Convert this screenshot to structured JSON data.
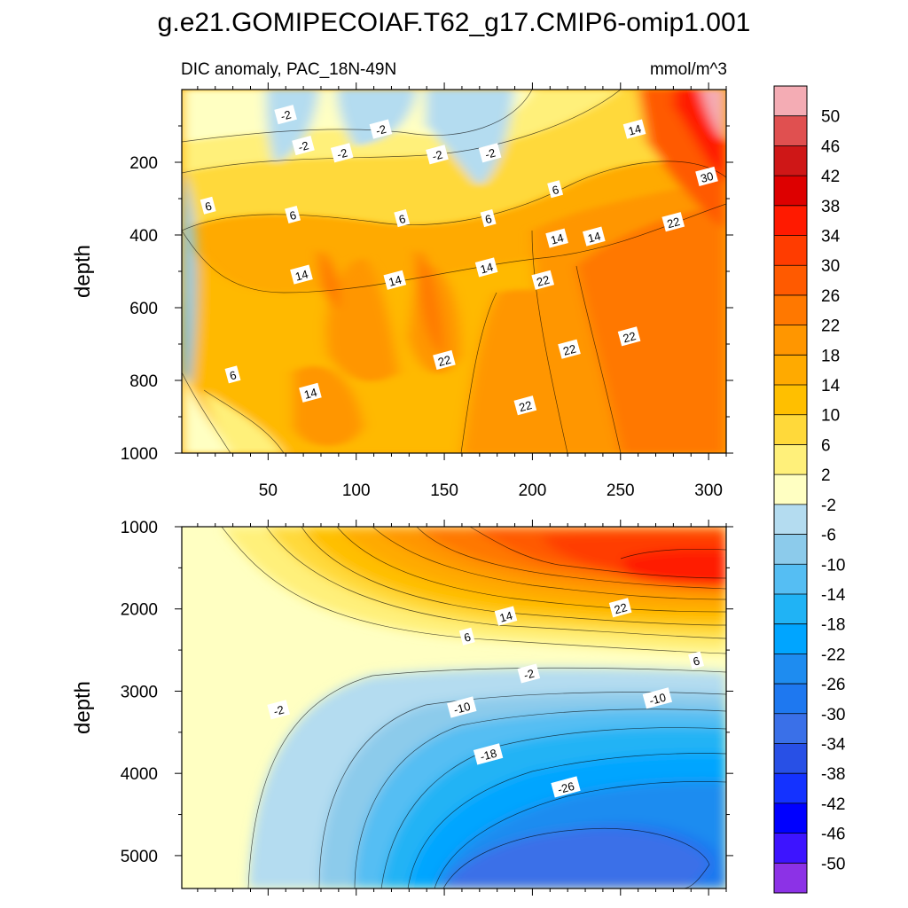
{
  "title": "g.e21.GOMIPECOIAF.T62_g17.CMIP6-omip1.001",
  "colorbar": {
    "levels": [
      "50",
      "46",
      "42",
      "38",
      "34",
      "30",
      "26",
      "22",
      "18",
      "14",
      "10",
      "6",
      "2",
      "-2",
      "-6",
      "-10",
      "-14",
      "-18",
      "-22",
      "-26",
      "-30",
      "-34",
      "-38",
      "-42",
      "-46",
      "-50"
    ],
    "colors": [
      "#f4acb4",
      "#e05050",
      "#cf1717",
      "#dd0000",
      "#ff1a00",
      "#ff3c00",
      "#ff5a00",
      "#ff7800",
      "#ff9600",
      "#ffaa00",
      "#ffbf00",
      "#ffd93a",
      "#fff07a",
      "#ffffc2",
      "#b4dcf0",
      "#8ccbeb",
      "#55bef3",
      "#20b3f5",
      "#00a5ff",
      "#1e8cf0",
      "#1e78f0",
      "#3a70e8",
      "#2850e6",
      "#1432ff",
      "#0000ff",
      "#3d14ff",
      "#8c32e6"
    ]
  },
  "chart_data": [
    {
      "type": "contour",
      "panel": "upper",
      "subtitle_left": "DIC anomaly, PAC_18N-49N",
      "subtitle_right": "mmol/m^3",
      "ylabel": "depth",
      "xlabel": "",
      "xlim": [
        1,
        310
      ],
      "ylim": [
        0,
        1000
      ],
      "y_reversed": true,
      "xticks": [
        "50",
        "100",
        "150",
        "200",
        "250",
        "300"
      ],
      "yticks": [
        "200",
        "400",
        "600",
        "800",
        "1000"
      ],
      "contour_labels": [
        {
          "text": "-2",
          "x": 60,
          "y": 70
        },
        {
          "text": "-2",
          "x": 70,
          "y": 155
        },
        {
          "text": "-2",
          "x": 92,
          "y": 175
        },
        {
          "text": "-2",
          "x": 114,
          "y": 110
        },
        {
          "text": "-2",
          "x": 146,
          "y": 180
        },
        {
          "text": "-2",
          "x": 176,
          "y": 175
        },
        {
          "text": "6",
          "x": 16,
          "y": 320
        },
        {
          "text": "6",
          "x": 64,
          "y": 345
        },
        {
          "text": "6",
          "x": 126,
          "y": 355
        },
        {
          "text": "6",
          "x": 175,
          "y": 355
        },
        {
          "text": "6",
          "x": 213,
          "y": 275
        },
        {
          "text": "6",
          "x": 30,
          "y": 785
        },
        {
          "text": "14",
          "x": 69,
          "y": 510
        },
        {
          "text": "14",
          "x": 122,
          "y": 525
        },
        {
          "text": "14",
          "x": 174,
          "y": 490
        },
        {
          "text": "14",
          "x": 214,
          "y": 410
        },
        {
          "text": "14",
          "x": 235,
          "y": 405
        },
        {
          "text": "14",
          "x": 258,
          "y": 110
        },
        {
          "text": "14",
          "x": 74,
          "y": 835
        },
        {
          "text": "22",
          "x": 150,
          "y": 745
        },
        {
          "text": "22",
          "x": 206,
          "y": 525
        },
        {
          "text": "22",
          "x": 221,
          "y": 715
        },
        {
          "text": "22",
          "x": 255,
          "y": 680
        },
        {
          "text": "22",
          "x": 280,
          "y": 365
        },
        {
          "text": "22",
          "x": 196,
          "y": 870
        },
        {
          "text": "30",
          "x": 299,
          "y": 240
        }
      ]
    },
    {
      "type": "contour",
      "panel": "lower",
      "subtitle_left": "",
      "subtitle_right": "",
      "ylabel": "depth",
      "xlabel": "",
      "xlim": [
        1,
        310
      ],
      "ylim": [
        1000,
        5400
      ],
      "y_reversed": true,
      "xticks": [],
      "yticks": [
        "1000",
        "2000",
        "3000",
        "4000",
        "5000"
      ],
      "contour_labels": [
        {
          "text": "14",
          "x": 185,
          "y": 2090
        },
        {
          "text": "22",
          "x": 250,
          "y": 1990
        },
        {
          "text": "6",
          "x": 163,
          "y": 2340
        },
        {
          "text": "6",
          "x": 293,
          "y": 2630
        },
        {
          "text": "-2",
          "x": 198,
          "y": 2790
        },
        {
          "text": "-2",
          "x": 56,
          "y": 3230
        },
        {
          "text": "-10",
          "x": 160,
          "y": 3200
        },
        {
          "text": "-10",
          "x": 271,
          "y": 3090
        },
        {
          "text": "-18",
          "x": 175,
          "y": 3770
        },
        {
          "text": "-26",
          "x": 219,
          "y": 4170
        }
      ]
    }
  ]
}
